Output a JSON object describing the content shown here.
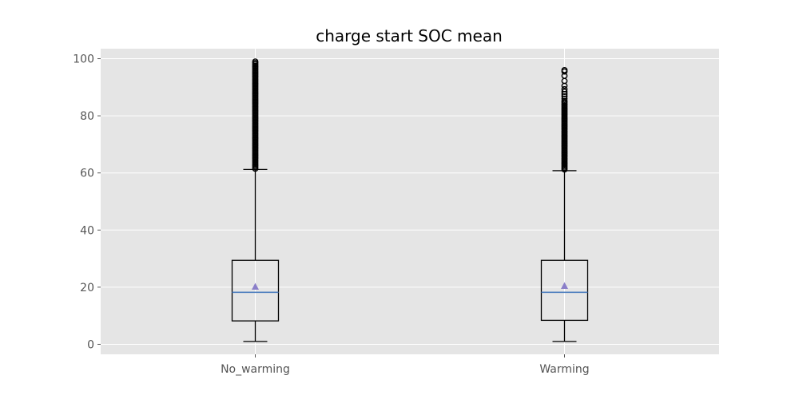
{
  "chart_data": {
    "type": "box",
    "title": "charge start SOC mean",
    "xlabel": "",
    "ylabel": "",
    "categories": [
      "No_warming",
      "Warming"
    ],
    "ylim": [
      -3.5,
      103.5
    ],
    "yticks": [
      0,
      20,
      40,
      60,
      80,
      100
    ],
    "grid": true,
    "boxes": [
      {
        "category": "No_warming",
        "whisker_low": 1,
        "q1": 8.2,
        "median": 18.2,
        "q3": 29.4,
        "whisker_high": 61.2,
        "mean": 20.1,
        "outliers": [
          61.5,
          62,
          62.5,
          63,
          63.5,
          64,
          64.5,
          65,
          65.5,
          66,
          66.5,
          67,
          67.5,
          68,
          68.5,
          69,
          69.5,
          70,
          70.5,
          71,
          71.5,
          72,
          72.5,
          73,
          73.5,
          74,
          74.5,
          75,
          75.5,
          76,
          76.5,
          77,
          77.5,
          78,
          78.5,
          79,
          79.5,
          80,
          80.5,
          81,
          81.5,
          82,
          82.5,
          83,
          83.5,
          84,
          84.5,
          85,
          85.5,
          86,
          86.5,
          87,
          87.5,
          88,
          88.5,
          89,
          89.5,
          90,
          90.5,
          91,
          91.5,
          92,
          92.5,
          93,
          93.5,
          94,
          94.5,
          95,
          95.5,
          96,
          96.5,
          97,
          97.5,
          98,
          98.5,
          99
        ]
      },
      {
        "category": "Warming",
        "whisker_low": 1,
        "q1": 8.4,
        "median": 18.2,
        "q3": 29.4,
        "whisker_high": 60.8,
        "mean": 20.4,
        "outliers": [
          61.2,
          61.7,
          62.2,
          62.7,
          63.2,
          63.7,
          64.2,
          64.7,
          65.2,
          65.7,
          66.2,
          66.7,
          67.2,
          67.7,
          68.2,
          68.7,
          69.2,
          69.7,
          70.2,
          70.7,
          71.2,
          71.7,
          72.2,
          72.7,
          73.2,
          73.7,
          74.2,
          74.7,
          75.2,
          75.7,
          76.2,
          76.7,
          77.2,
          77.7,
          78.2,
          78.7,
          79.2,
          79.7,
          80.2,
          80.7,
          81.2,
          81.7,
          82.2,
          82.7,
          83.2,
          83.7,
          84.2,
          84.7,
          85.2,
          86,
          86.8,
          87.6,
          88.4,
          89.3,
          90.5,
          92.2,
          94,
          95.5,
          96
        ]
      }
    ],
    "colors": {
      "plot_background": "#e5e5e5",
      "grid": "#ffffff",
      "box": "#000000",
      "median": "#4f7fbf",
      "mean_marker": "#8b7fc9",
      "outlier": "#000000"
    }
  }
}
